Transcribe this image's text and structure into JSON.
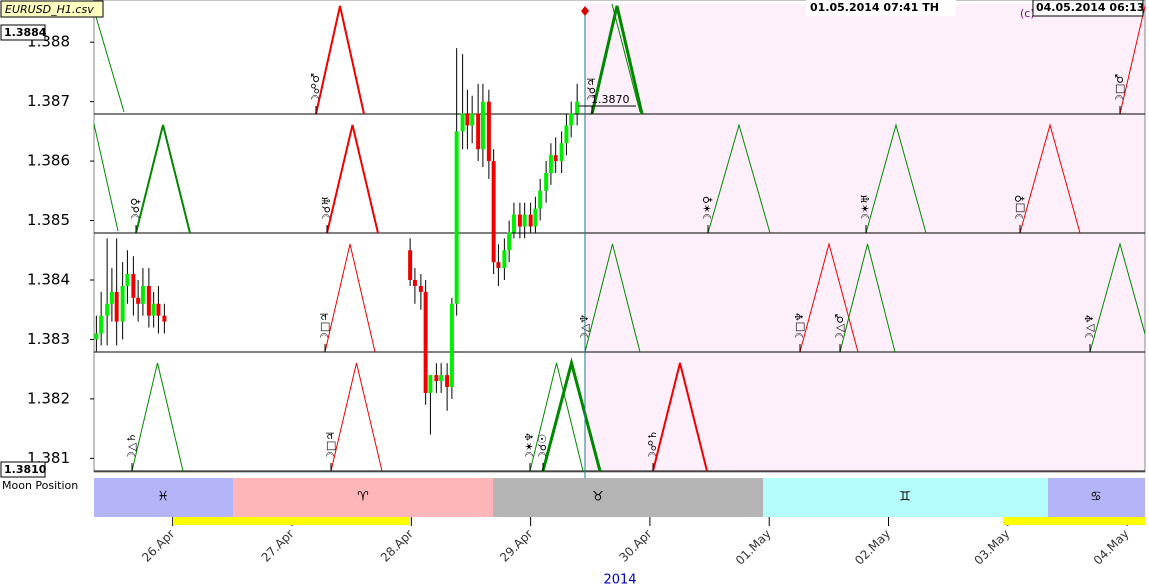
{
  "chart_data": {
    "type": "candlestick",
    "title": "EURUSD_H1.csv",
    "header_time": "01.05.2014  07:41 TH",
    "end_time": "04.05.2014  06:13",
    "copyright": "(c)",
    "top_price_label": "1.3884",
    "bottom_price_label": "1.3810",
    "current_price_label": "1.3870",
    "moon_label": "Moon Position",
    "zodiac": [
      "♓",
      "♈",
      "♉",
      "♊",
      "♋"
    ],
    "year_label": "2014",
    "aspects": [
      "☽☍♂",
      "☽☌♃",
      "☽□♂",
      "☽☌♀",
      "☽☌♅",
      "☽✶♀",
      "☽✶♅",
      "☽□♀",
      "☽□♃",
      "☽△♆",
      "☽□♆",
      "☽△♂",
      "☽△♆",
      "☽△♄",
      "☽□♃",
      "☽✶♆",
      "☽☌☉",
      "☽☍♄"
    ],
    "xlim": [
      25.34,
      34.15
    ],
    "xticks": [
      {
        "value": 26,
        "label": "26.Apr"
      },
      {
        "value": 27,
        "label": "27.Apr"
      },
      {
        "value": 28,
        "label": "28.Apr"
      },
      {
        "value": 29,
        "label": "29.Apr"
      },
      {
        "value": 30,
        "label": "30.Apr"
      },
      {
        "value": 31,
        "label": "01.May"
      },
      {
        "value": 32,
        "label": "02.May"
      },
      {
        "value": 33,
        "label": "03.May"
      },
      {
        "value": 34,
        "label": "04.May"
      }
    ],
    "ylim": [
      1.38077,
      1.38871
    ],
    "yticks": [
      1.381,
      1.382,
      1.383,
      1.384,
      1.385,
      1.386,
      1.387,
      1.388
    ],
    "up_color": "#00ee00",
    "down_color": "#ee0000",
    "x": [
      25.36,
      25.4,
      25.45,
      25.49,
      25.53,
      25.58,
      25.62,
      25.67,
      25.71,
      25.75,
      25.8,
      25.84,
      25.88,
      25.93,
      27.99,
      28.03,
      28.08,
      28.12,
      28.16,
      28.21,
      28.25,
      28.3,
      28.34,
      28.38,
      28.43,
      28.47,
      28.51,
      28.56,
      28.6,
      28.65,
      28.69,
      28.73,
      28.78,
      28.82,
      28.86,
      28.91,
      28.95,
      29.0,
      29.04,
      29.08,
      29.13,
      29.17,
      29.21,
      29.26,
      29.3,
      29.34,
      29.39
    ],
    "open": [
      1.383,
      1.3831,
      1.3834,
      1.3836,
      1.3838,
      1.3833,
      1.3839,
      1.3841,
      1.3837,
      1.3836,
      1.3839,
      1.3834,
      1.3836,
      1.3834,
      1.3845,
      1.384,
      1.3839,
      1.3838,
      1.3821,
      1.3824,
      1.3823,
      1.3824,
      1.3822,
      1.3836,
      1.3865,
      1.3868,
      1.3866,
      1.3868,
      1.3862,
      1.387,
      1.386,
      1.3843,
      1.3842,
      1.3845,
      1.3848,
      1.3851,
      1.3849,
      1.3851,
      1.3849,
      1.3852,
      1.3855,
      1.3858,
      1.3861,
      1.386,
      1.3863,
      1.3866,
      1.3868
    ],
    "close": [
      1.3831,
      1.3834,
      1.3836,
      1.3838,
      1.3833,
      1.3839,
      1.3841,
      1.3837,
      1.3836,
      1.3839,
      1.3834,
      1.3836,
      1.3834,
      1.3833,
      1.384,
      1.3839,
      1.3838,
      1.3821,
      1.3824,
      1.3823,
      1.3824,
      1.3822,
      1.3836,
      1.3865,
      1.3868,
      1.3866,
      1.3868,
      1.3862,
      1.387,
      1.386,
      1.3843,
      1.3842,
      1.3845,
      1.3848,
      1.3851,
      1.3849,
      1.3851,
      1.3849,
      1.3852,
      1.3855,
      1.3858,
      1.3861,
      1.386,
      1.3863,
      1.3866,
      1.3868,
      1.387
    ],
    "high": [
      1.3834,
      1.3838,
      1.3847,
      1.3842,
      1.3847,
      1.3843,
      1.3845,
      1.3844,
      1.384,
      1.3842,
      1.3842,
      1.3838,
      1.3839,
      1.3836,
      1.3847,
      1.3842,
      1.3841,
      1.384,
      1.3824,
      1.3826,
      1.3826,
      1.3826,
      1.3837,
      1.3879,
      1.3878,
      1.3872,
      1.3871,
      1.3873,
      1.3873,
      1.3872,
      1.3862,
      1.3846,
      1.3847,
      1.385,
      1.3853,
      1.3853,
      1.3853,
      1.3853,
      1.3854,
      1.3857,
      1.386,
      1.3863,
      1.3864,
      1.3865,
      1.3868,
      1.387,
      1.3873
    ],
    "low": [
      1.3828,
      1.3829,
      1.3829,
      1.3833,
      1.3829,
      1.383,
      1.3836,
      1.3834,
      1.3833,
      1.3834,
      1.3832,
      1.3832,
      1.3831,
      1.3831,
      1.3839,
      1.3836,
      1.3835,
      1.3819,
      1.3814,
      1.3821,
      1.3821,
      1.3818,
      1.382,
      1.3834,
      1.3862,
      1.3862,
      1.3863,
      1.386,
      1.3859,
      1.3857,
      1.3841,
      1.3839,
      1.384,
      1.3843,
      1.3847,
      1.3847,
      1.3847,
      1.3848,
      1.3848,
      1.385,
      1.3853,
      1.3856,
      1.3858,
      1.3858,
      1.3861,
      1.3864,
      1.3866
    ]
  }
}
